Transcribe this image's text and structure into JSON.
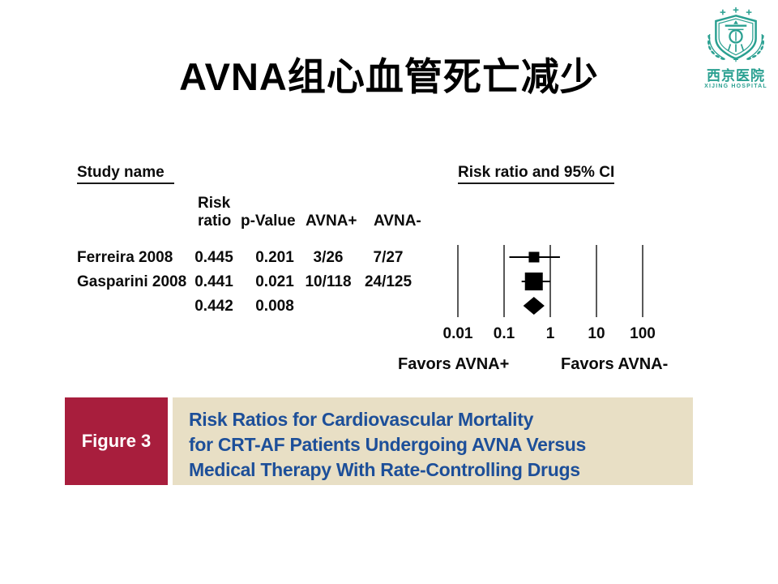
{
  "title": "AVNA组心血管死亡减少",
  "logo": {
    "name_cn": "西京医院",
    "name_en": "XIJING HOSPITAL",
    "color": "#2AA091"
  },
  "figure": {
    "study_header": "Study name",
    "columns": {
      "risk_line1": "Risk",
      "risk_line2": "ratio",
      "p_value": "p-Value",
      "avna_plus": "AVNA+",
      "avna_minus": "AVNA-"
    },
    "favors_left": "Favors AVNA+",
    "favors_right": "Favors AVNA-"
  },
  "chart_data": {
    "type": "forest",
    "title": "Risk ratio and 95% CI",
    "x_scale": "log",
    "x_range": [
      0.01,
      100
    ],
    "x_ticks": [
      0.01,
      0.1,
      1,
      10,
      100
    ],
    "axis_labels": [
      "0.01",
      "0.1",
      "1",
      "10",
      "100"
    ],
    "rows": [
      {
        "study": "Ferreira 2008",
        "risk_ratio": 0.445,
        "p_value": 0.201,
        "avna_plus": "3/26",
        "avna_minus": "7/27",
        "ci_low": 0.13,
        "ci_high": 1.62,
        "marker": "square",
        "marker_size": 13
      },
      {
        "study": "Gasparini 2008",
        "risk_ratio": 0.441,
        "p_value": 0.021,
        "avna_plus": "10/118",
        "avna_minus": "24/125",
        "ci_low": 0.24,
        "ci_high": 1.0,
        "marker": "square",
        "marker_size": 22
      },
      {
        "study": "",
        "risk_ratio": 0.442,
        "p_value": 0.008,
        "avna_plus": "",
        "avna_minus": "",
        "ci_low": 0.26,
        "ci_high": 0.75,
        "marker": "diamond",
        "marker_size": 22
      }
    ],
    "legend_position": "none",
    "grid": false
  },
  "caption": {
    "label": "Figure 3",
    "lines": [
      "Risk Ratios for Cardiovascular Mortality",
      "for CRT-AF Patients Undergoing AVNA Versus",
      "Medical Therapy With Rate-Controlling Drugs"
    ],
    "label_bg": "#A81E3D",
    "panel_bg": "#E8DFC5",
    "text_color": "#1D4F99"
  }
}
